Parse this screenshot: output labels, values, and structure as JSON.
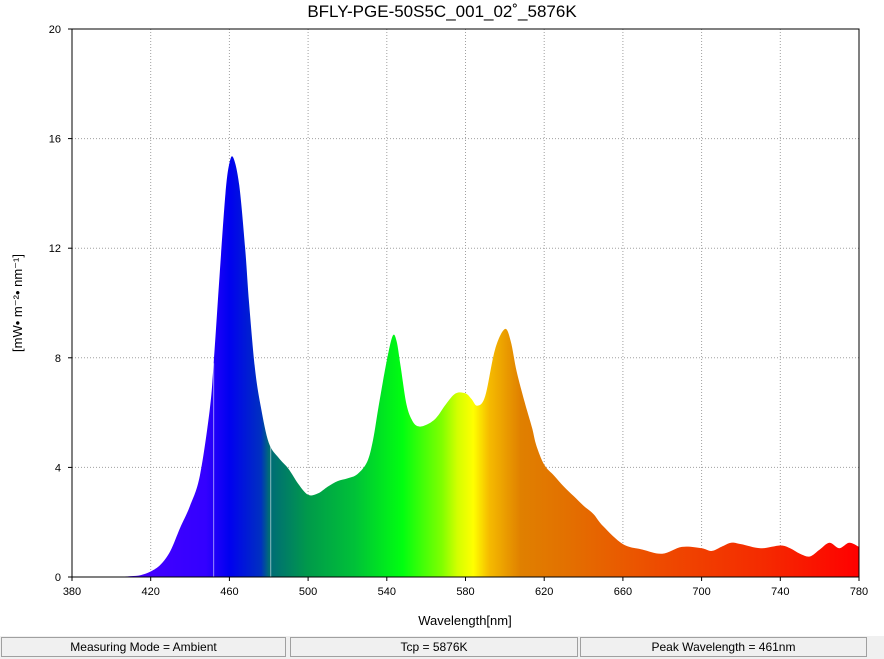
{
  "chart_data": {
    "type": "area",
    "title": "BFLY-PGE-50S5C_001_02˚_5876K",
    "xlabel": "Wavelength[nm]",
    "ylabel": "[mW• m⁻²• nm⁻¹]",
    "xlim": [
      380,
      780
    ],
    "ylim": [
      0,
      20
    ],
    "x_ticks": [
      380,
      420,
      460,
      500,
      540,
      580,
      620,
      660,
      700,
      740,
      780
    ],
    "y_ticks": [
      0,
      4,
      8,
      12,
      16,
      20
    ],
    "grid": true,
    "series": [
      {
        "x": [
          380,
          390,
          400,
          405,
          410,
          415,
          420,
          425,
          430,
          435,
          440,
          445,
          450,
          452,
          455,
          458,
          460,
          462,
          465,
          468,
          470,
          473,
          476,
          480,
          485,
          490,
          495,
          500,
          505,
          510,
          515,
          520,
          525,
          530,
          533,
          536,
          540,
          543,
          545,
          547,
          550,
          553,
          556,
          560,
          565,
          570,
          575,
          580,
          583,
          586,
          590,
          595,
          600,
          603,
          606,
          610,
          612,
          614,
          616,
          620,
          625,
          630,
          635,
          640,
          645,
          650,
          660,
          670,
          680,
          690,
          700,
          705,
          710,
          715,
          720,
          730,
          740,
          745,
          750,
          755,
          760,
          765,
          770,
          775,
          780
        ],
        "y": [
          0,
          0,
          0,
          0.01,
          0.03,
          0.07,
          0.2,
          0.45,
          0.95,
          1.8,
          2.6,
          3.7,
          6.1,
          7.8,
          11.0,
          14.0,
          15.1,
          15.3,
          14.3,
          12.0,
          10.0,
          7.6,
          6.2,
          4.9,
          4.35,
          3.95,
          3.4,
          3.0,
          3.05,
          3.3,
          3.5,
          3.6,
          3.75,
          4.2,
          5.0,
          6.3,
          7.9,
          8.8,
          8.6,
          7.7,
          6.3,
          5.7,
          5.5,
          5.55,
          5.8,
          6.3,
          6.7,
          6.7,
          6.5,
          6.25,
          6.6,
          8.3,
          9.05,
          8.6,
          7.5,
          6.4,
          5.9,
          5.4,
          4.8,
          4.1,
          3.7,
          3.3,
          2.95,
          2.6,
          2.3,
          1.85,
          1.2,
          1.0,
          0.85,
          1.1,
          1.05,
          0.95,
          1.1,
          1.25,
          1.2,
          1.05,
          1.15,
          1.05,
          0.85,
          0.75,
          1.0,
          1.25,
          1.05,
          1.25,
          1.1
        ]
      }
    ],
    "marker_lines_x": [
      452,
      481
    ]
  },
  "status_bar": {
    "measuring_mode": "Measuring Mode = Ambient",
    "tcp": "Tcp = 5876K",
    "peak_wavelength": "Peak Wavelength = 461nm"
  }
}
